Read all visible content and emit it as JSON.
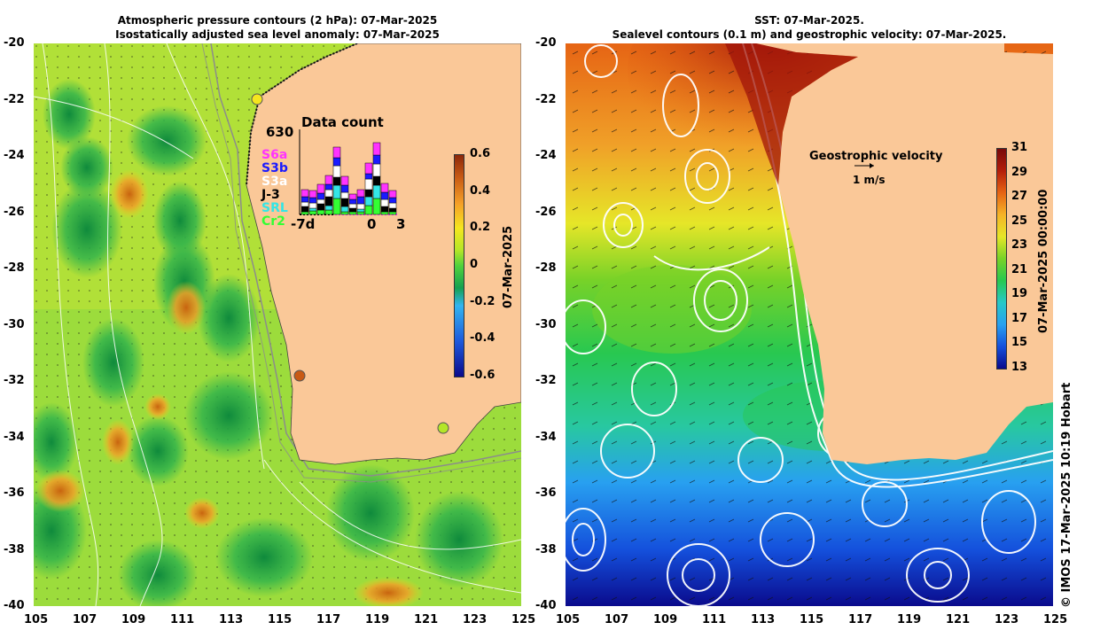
{
  "left_panel": {
    "title_line1": "Atmospheric pressure contours (2 hPa): 07-Mar-2025",
    "title_line2": "Isostatically adjusted sea level anomaly: 07-Mar-2025",
    "colorbar_label": "07-Mar-2025",
    "colorbar_ticks": [
      "0.6",
      "0.4",
      "0.2",
      "0",
      "-0.2",
      "-0.4",
      "-0.6"
    ],
    "inset": {
      "title": "Data count",
      "max_label": "630",
      "x_start": "-7d",
      "x_zero": "0",
      "x_end": "3",
      "legend": [
        {
          "label": "S6a",
          "color": "#ff33ff"
        },
        {
          "label": "S3b",
          "color": "#1a1aff"
        },
        {
          "label": "S3a",
          "color": "#ffffff"
        },
        {
          "label": "J-3",
          "color": "#000000"
        },
        {
          "label": "SRL",
          "color": "#33e6e6"
        },
        {
          "label": "Cr2",
          "color": "#33ff33"
        }
      ]
    }
  },
  "right_panel": {
    "title_line1": "SST: 07-Mar-2025.",
    "title_line2": "Sealevel contours (0.1 m) and geostrophic velocity: 07-Mar-2025.",
    "colorbar_label": "07-Mar-2025 00:00:00",
    "colorbar_ticks": [
      "31",
      "29",
      "27",
      "25",
      "23",
      "21",
      "19",
      "17",
      "15",
      "13"
    ],
    "velocity_title": "Geostrophic velocity",
    "velocity_scale": "1 m/s"
  },
  "axes": {
    "lat_ticks": [
      "-20",
      "-22",
      "-24",
      "-26",
      "-28",
      "-30",
      "-32",
      "-34",
      "-36",
      "-38",
      "-40"
    ],
    "lon_ticks": [
      "105",
      "107",
      "109",
      "111",
      "113",
      "115",
      "117",
      "119",
      "121",
      "123",
      "125"
    ]
  },
  "credit": "© IMOS 17-Mar-2025 10:19 Hobart",
  "colors": {
    "land": "#fac898",
    "ssla_ramp": [
      "#0a0a8c",
      "#1e5adc",
      "#32b4f0",
      "#14a050",
      "#50d23c",
      "#b4e628",
      "#f5e61e",
      "#f5a028",
      "#c85a14",
      "#8c280a"
    ],
    "sst_ramp": [
      "#0a0a8c",
      "#1450dc",
      "#28a0f0",
      "#28c8c8",
      "#28c850",
      "#78d228",
      "#e6e628",
      "#f5b428",
      "#e66414",
      "#b41e0a",
      "#780a0a"
    ]
  }
}
